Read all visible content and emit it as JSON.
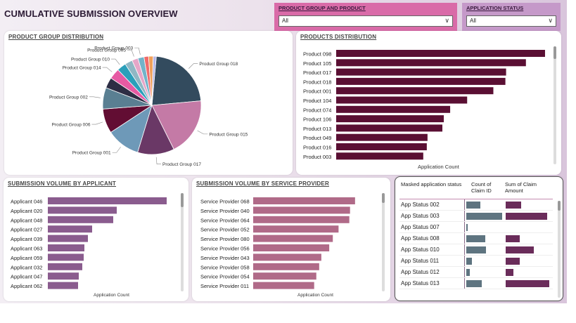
{
  "header": {
    "title": "CUMULATIVE SUBMISSION OVERVIEW"
  },
  "slicers": {
    "product": {
      "label": "PRODUCT GROUP AND PRODUCT",
      "value": "All"
    },
    "status": {
      "label": "APPLICATION STATUS",
      "value": "All"
    }
  },
  "colors": {
    "pie": [
      "#334b5e",
      "#c47aa6",
      "#6a3866",
      "#6e99b8",
      "#620d33",
      "#5a7f92",
      "#2d2d44",
      "#e65aa3",
      "#2b9fba",
      "#8fb7c4",
      "#e6a6c8",
      "#71b3c9",
      "#f06a6a",
      "#f0a05a",
      "#b5b5e6"
    ],
    "products_bar": "#5a0f33",
    "applicant_bar": "#8a5c8e",
    "provider_bar": "#b06a88"
  },
  "product_group_chart": {
    "title": "PRODUCT GROUP DISTRIBUTION",
    "chart_data": {
      "type": "pie",
      "labels": [
        "Product Group 018",
        "Product Group 015",
        "Product Group 017",
        "Product Group 001",
        "Product Group 006",
        "Product Group 002",
        "",
        "Product Group 014",
        "Product Group 010",
        "",
        "Product Group 005",
        "Product Group 003",
        "",
        "",
        ""
      ],
      "values": [
        22,
        19,
        12,
        11,
        8,
        7,
        3.5,
        3.5,
        3,
        2.5,
        2,
        2,
        1.5,
        1.5,
        1
      ]
    }
  },
  "products_chart": {
    "title": "PRODUCTS DISTRIBUTION",
    "chart_data": {
      "type": "bar",
      "categories": [
        "Product 098",
        "Product 105",
        "Product 017",
        "Product 018",
        "Product 001",
        "Product 104",
        "Product 074",
        "Product 106",
        "Product 013",
        "Product 049",
        "Product 016",
        "Product 003"
      ],
      "values": [
        295,
        268,
        240,
        239,
        222,
        185,
        161,
        152,
        150,
        129,
        128,
        123
      ],
      "xlabel": "Application Count",
      "xlim": [
        0,
        300
      ]
    }
  },
  "applicant_chart": {
    "title": "SUBMISSION VOLUME BY APPLICANT",
    "chart_data": {
      "type": "bar",
      "categories": [
        "Applicant 046",
        "Applicant 020",
        "Applicant 048",
        "Applicant 027",
        "Applicant 039",
        "Applicant 063",
        "Applicant 059",
        "Applicant 032",
        "Applicant 047",
        "Applicant 062"
      ],
      "values": [
        169,
        98,
        93,
        63,
        57,
        52,
        51,
        49,
        44,
        43
      ],
      "xlabel": "Application Count",
      "xlim": [
        0,
        175
      ]
    }
  },
  "provider_chart": {
    "title": "SUBMISSION VOLUME BY SERVICE PROVIDER",
    "chart_data": {
      "type": "bar",
      "categories": [
        "Service Provider 068",
        "Service Provider 040",
        "Service Provider 064",
        "Service Provider 052",
        "Service Provider 080",
        "Service Provider 056",
        "Service Provider 043",
        "Service Provider 058",
        "Service Provider 054",
        "Service Provider 011"
      ],
      "values": [
        142,
        135,
        134,
        119,
        111,
        106,
        95,
        92,
        88,
        85
      ],
      "xlabel": "Application Count",
      "xlim": [
        0,
        150
      ]
    }
  },
  "status_table": {
    "headers": [
      "Masked application status",
      "Count of Claim ID",
      "Sum of Claim Amount"
    ],
    "rows": [
      {
        "status": "App Status 002",
        "count": 0.38,
        "amount": 0.35
      },
      {
        "status": "App Status 003",
        "count": 0.98,
        "amount": 0.95
      },
      {
        "status": "App Status 007",
        "count": 0.04,
        "amount": 0.0
      },
      {
        "status": "App Status 008",
        "count": 0.52,
        "amount": 0.33
      },
      {
        "status": "App Status 010",
        "count": 0.53,
        "amount": 0.65
      },
      {
        "status": "App Status 011",
        "count": 0.15,
        "amount": 0.33
      },
      {
        "status": "App Status 012",
        "count": 0.1,
        "amount": 0.18
      },
      {
        "status": "App Status 013",
        "count": 0.42,
        "amount": 1.0
      }
    ]
  }
}
